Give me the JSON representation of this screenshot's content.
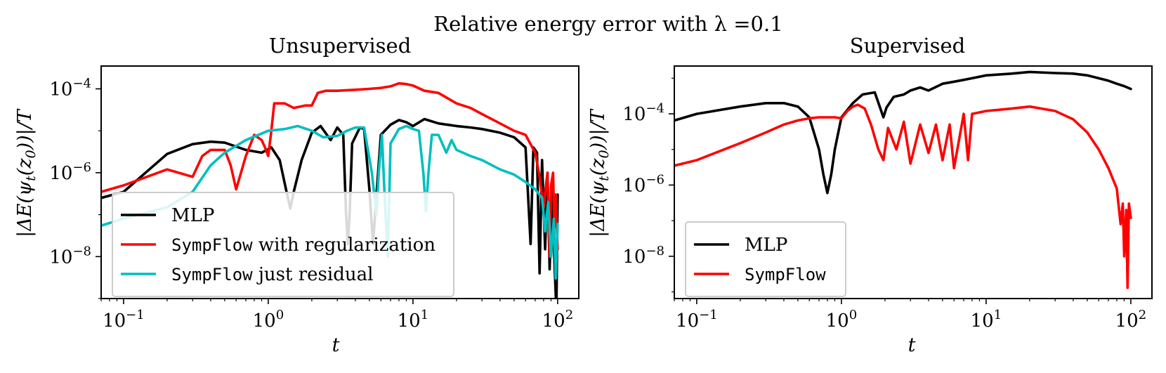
{
  "figure": {
    "suptitle": "Relative energy error with λ =0.1"
  },
  "colors": {
    "mlp": "#000000",
    "sympflow": "#ff0000",
    "residual": "#00bfbf",
    "axes": "#000000",
    "legend_border": "#cccccc"
  },
  "chart_data": [
    {
      "type": "line",
      "title": "Unsupervised",
      "xlabel": "t",
      "ylabel": "|ΔE(ψ_t(z_0))|/T",
      "xscale": "log",
      "yscale": "log",
      "xlim": [
        0.07,
        140
      ],
      "ylim": [
        1e-09,
        0.00035
      ],
      "xticks": [
        {
          "value": 0.1,
          "base": "10",
          "exp": "−1"
        },
        {
          "value": 1,
          "base": "10",
          "exp": "0"
        },
        {
          "value": 10,
          "base": "10",
          "exp": "1"
        },
        {
          "value": 100,
          "base": "10",
          "exp": "2"
        }
      ],
      "yticks": [
        {
          "value": 1e-08,
          "base": "10",
          "exp": "−8"
        },
        {
          "value": 1e-06,
          "base": "10",
          "exp": "−6"
        },
        {
          "value": 0.0001,
          "base": "10",
          "exp": "−4"
        }
      ],
      "legend_location": "lower-left",
      "legend": [
        {
          "name": "MLP",
          "mono": "",
          "text": "MLP",
          "key": "mlp"
        },
        {
          "name": "SympFlow with regularization",
          "mono": "SympFlow",
          "text": " with regularization",
          "key": "sympflow"
        },
        {
          "name": "SympFlow just residual",
          "mono": "SympFlow",
          "text": " just residual",
          "key": "residual"
        }
      ],
      "series": [
        {
          "name": "MLP",
          "key": "mlp",
          "x": [
            0.07,
            0.1,
            0.2,
            0.3,
            0.4,
            0.5,
            0.6,
            0.7,
            0.9,
            1.05,
            1.2,
            1.35,
            1.42,
            1.5,
            1.7,
            2.0,
            2.3,
            2.7,
            3.0,
            3.3,
            3.45,
            3.55,
            3.65,
            3.8,
            4.3,
            4.6,
            5.0,
            5.3,
            5.6,
            6.0,
            7.0,
            8.0,
            9.0,
            10.0,
            12.0,
            15.0,
            20.0,
            25.0,
            30.0,
            40.0,
            50.0,
            60.0,
            65.0,
            68.0,
            72.0,
            75.0,
            78.0,
            82.0,
            85.0,
            88.0,
            92.0,
            95.0,
            98.0,
            100.0
          ],
          "y": [
            2.5e-07,
            3.5e-07,
            2.8e-06,
            4.8e-06,
            5.5e-06,
            5.2e-06,
            4.2e-06,
            3.5e-06,
            3e-06,
            4e-06,
            2e-06,
            3e-07,
            1.4e-07,
            3.5e-07,
            2e-06,
            9e-06,
            1.3e-05,
            6e-06,
            1.2e-05,
            8e-06,
            1e-07,
            2e-08,
            1e-07,
            5e-06,
            1.2e-05,
            1.1e-05,
            4e-07,
            2e-08,
            3e-07,
            8e-06,
            1.4e-05,
            1.8e-05,
            1.6e-05,
            1.3e-05,
            1.9e-05,
            1.5e-05,
            1.3e-05,
            1.2e-05,
            1.1e-05,
            9e-06,
            7e-06,
            4e-06,
            2e-08,
            4e-06,
            3e-06,
            4e-09,
            2e-06,
            1.5e-08,
            1e-06,
            5e-09,
            6e-07,
            8e-09,
            5e-10,
            3e-07
          ]
        },
        {
          "name": "SympFlow with regularization",
          "key": "sympflow",
          "x": [
            0.07,
            0.1,
            0.2,
            0.3,
            0.35,
            0.4,
            0.5,
            0.55,
            0.6,
            0.7,
            0.8,
            0.9,
            0.95,
            1.0,
            1.05,
            1.1,
            1.3,
            1.5,
            1.8,
            2.0,
            2.2,
            2.5,
            3.0,
            4.0,
            5.0,
            6.0,
            7.0,
            8.0,
            9.0,
            10.0,
            12.0,
            15.0,
            20.0,
            25.0,
            30.0,
            40.0,
            50.0,
            60.0,
            70.0,
            75.0,
            80.0,
            85.0,
            88.0,
            90.0,
            93.0,
            95.0,
            97.0,
            100.0
          ],
          "y": [
            3.5e-07,
            5e-07,
            1.2e-06,
            8e-07,
            2.5e-06,
            3.5e-06,
            3.5e-06,
            1.5e-06,
            4e-07,
            2.5e-06,
            8e-06,
            6e-06,
            4e-06,
            2.5e-06,
            1e-05,
            4.5e-05,
            4.5e-05,
            3.5e-05,
            4e-05,
            4e-05,
            8e-05,
            9e-05,
            9e-05,
            9.5e-05,
            0.0001,
            0.000105,
            0.000115,
            0.000135,
            0.00013,
            0.00012,
            9e-05,
            8e-05,
            4.5e-05,
            3.5e-05,
            2.5e-05,
            1.5e-05,
            1e-05,
            8e-06,
            3e-06,
            8e-07,
            1.5e-07,
            1e-06,
            1e-08,
            5e-07,
            1e-06,
            5e-08,
            3e-07,
            1.5e-08
          ]
        },
        {
          "name": "SympFlow just residual",
          "key": "residual",
          "x": [
            0.07,
            0.1,
            0.2,
            0.3,
            0.4,
            0.5,
            0.7,
            1.0,
            1.3,
            1.6,
            2.0,
            2.4,
            3.0,
            3.5,
            4.0,
            4.6,
            5.2,
            5.6,
            5.8,
            6.1,
            6.4,
            6.7,
            7.0,
            8.0,
            9.0,
            10.0,
            11.0,
            11.8,
            12.3,
            12.8,
            13.5,
            15.0,
            17.0,
            18.5,
            20.0,
            25.0,
            30.0,
            40.0,
            50.0,
            60.0,
            70.0,
            78.0,
            82.0,
            86.0,
            90.0,
            94.0,
            97.0,
            100.0
          ],
          "y": [
            5.5e-08,
            8e-08,
            1.5e-07,
            3.5e-07,
            1.5e-06,
            3e-06,
            6e-06,
            1e-05,
            1.1e-05,
            1.3e-05,
            1e-05,
            7e-06,
            7.5e-06,
            1e-05,
            1.2e-05,
            1.2e-05,
            1e-06,
            1e-07,
            1e-06,
            8e-06,
            2e-07,
            1e-08,
            5e-06,
            1.1e-05,
            1.3e-05,
            1.1e-05,
            1e-05,
            1e-06,
            1.2e-07,
            1e-06,
            8e-06,
            8e-06,
            3e-06,
            6e-06,
            3.5e-06,
            2.5e-06,
            2e-06,
            1.2e-06,
            9e-07,
            6e-07,
            4e-07,
            2.5e-07,
            4e-08,
            2e-07,
            1e-08,
            8e-08,
            3e-09,
            6e-08
          ]
        }
      ]
    },
    {
      "type": "line",
      "title": "Supervised",
      "xlabel": "t",
      "ylabel": "|ΔE(ψ_t(z_0))|/T",
      "xscale": "log",
      "yscale": "log",
      "xlim": [
        0.07,
        140
      ],
      "ylim": [
        6.5e-10,
        0.0022
      ],
      "xticks": [
        {
          "value": 0.1,
          "base": "10",
          "exp": "−1"
        },
        {
          "value": 1,
          "base": "10",
          "exp": "0"
        },
        {
          "value": 10,
          "base": "10",
          "exp": "1"
        },
        {
          "value": 100,
          "base": "10",
          "exp": "2"
        }
      ],
      "yticks": [
        {
          "value": 1e-08,
          "base": "10",
          "exp": "−8"
        },
        {
          "value": 1e-06,
          "base": "10",
          "exp": "−6"
        },
        {
          "value": 0.0001,
          "base": "10",
          "exp": "−4"
        }
      ],
      "legend_location": "lower-left",
      "legend": [
        {
          "name": "MLP",
          "mono": "",
          "text": "MLP",
          "key": "mlp"
        },
        {
          "name": "SympFlow",
          "mono": "SympFlow",
          "text": "",
          "key": "sympflow"
        }
      ],
      "series": [
        {
          "name": "MLP",
          "key": "mlp",
          "x": [
            0.07,
            0.1,
            0.2,
            0.3,
            0.4,
            0.5,
            0.6,
            0.7,
            0.75,
            0.8,
            0.85,
            0.9,
            1.0,
            1.2,
            1.4,
            1.7,
            1.85,
            1.95,
            2.05,
            2.3,
            2.7,
            3.0,
            3.5,
            4.0,
            5.0,
            6.0,
            7.0,
            8.0,
            10.0,
            15.0,
            20.0,
            30.0,
            40.0,
            50.0,
            60.0,
            70.0,
            80.0,
            90.0,
            100.0
          ],
          "y": [
            6.5e-05,
            0.0001,
            0.00016,
            0.0002,
            0.0002,
            0.00016,
            8e-05,
            1e-05,
            2e-06,
            6e-07,
            2e-06,
            1e-05,
            8e-05,
            0.0002,
            0.00035,
            0.0004,
            0.00015,
            8e-05,
            0.00015,
            0.0003,
            0.00035,
            0.00045,
            0.00055,
            0.00045,
            0.0007,
            0.0008,
            0.0009,
            0.001,
            0.0012,
            0.00135,
            0.0015,
            0.0014,
            0.00135,
            0.0012,
            0.001,
            0.00085,
            0.0007,
            0.0006,
            0.0005
          ]
        },
        {
          "name": "SympFlow",
          "key": "sympflow",
          "x": [
            0.07,
            0.1,
            0.2,
            0.3,
            0.4,
            0.5,
            0.6,
            0.7,
            0.8,
            0.9,
            1.0,
            1.1,
            1.2,
            1.3,
            1.45,
            1.6,
            1.8,
            1.95,
            2.1,
            2.4,
            2.7,
            3.0,
            3.5,
            4.0,
            4.5,
            5.0,
            5.6,
            6.0,
            7.0,
            7.5,
            8.0,
            9.0,
            10.0,
            15.0,
            20.0,
            30.0,
            40.0,
            50.0,
            60.0,
            70.0,
            80.0,
            85.0,
            88.0,
            90.0,
            93.0,
            95.0,
            97.0,
            100.0
          ],
          "y": [
            3.5e-06,
            5e-06,
            1.5e-05,
            3e-05,
            5e-05,
            6.5e-05,
            7.5e-05,
            8e-05,
            8e-05,
            8e-05,
            7.5e-05,
            0.00012,
            0.00016,
            0.00018,
            0.00014,
            5e-05,
            1e-05,
            5e-06,
            4e-05,
            1e-05,
            6e-05,
            4e-06,
            5e-05,
            8e-06,
            5e-05,
            5e-06,
            5e-05,
            3e-06,
            0.0001,
            5e-06,
            0.0001,
            0.00011,
            0.00012,
            0.00014,
            0.00016,
            0.00012,
            7e-05,
            3e-05,
            1e-05,
            3e-06,
            8e-07,
            8e-08,
            3e-07,
            1e-08,
            2e-07,
            1.3e-09,
            3e-07,
            1.2e-07
          ]
        }
      ]
    }
  ]
}
